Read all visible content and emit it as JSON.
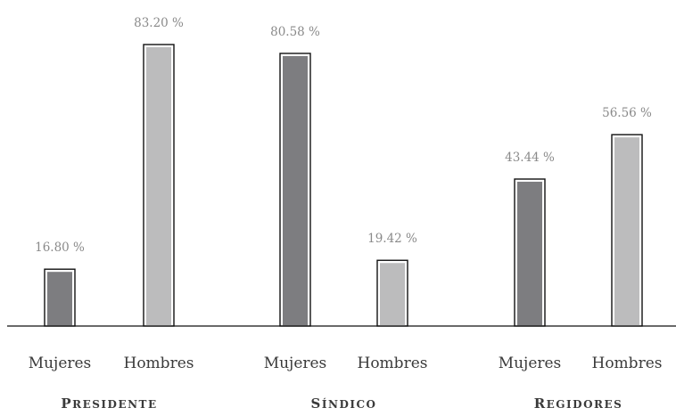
{
  "chart_data": {
    "type": "bar",
    "colors": {
      "Mujeres": "#7d7d80",
      "Hombres": "#bcbcbd"
    },
    "groups": [
      {
        "label": "Presidente",
        "bars": [
          {
            "category": "Mujeres",
            "value": 16.8,
            "label": "16.80 %"
          },
          {
            "category": "Hombres",
            "value": 83.2,
            "label": "83.20 %"
          }
        ]
      },
      {
        "label": "Síndico",
        "bars": [
          {
            "category": "Mujeres",
            "value": 80.58,
            "label": "80.58 %"
          },
          {
            "category": "Hombres",
            "value": 19.42,
            "label": "19.42 %"
          }
        ]
      },
      {
        "label": "Regidores",
        "bars": [
          {
            "category": "Mujeres",
            "value": 43.44,
            "label": "43.44 %"
          },
          {
            "category": "Hombres",
            "value": 56.56,
            "label": "56.56 %"
          }
        ]
      }
    ],
    "ylim": [
      0,
      100
    ]
  }
}
